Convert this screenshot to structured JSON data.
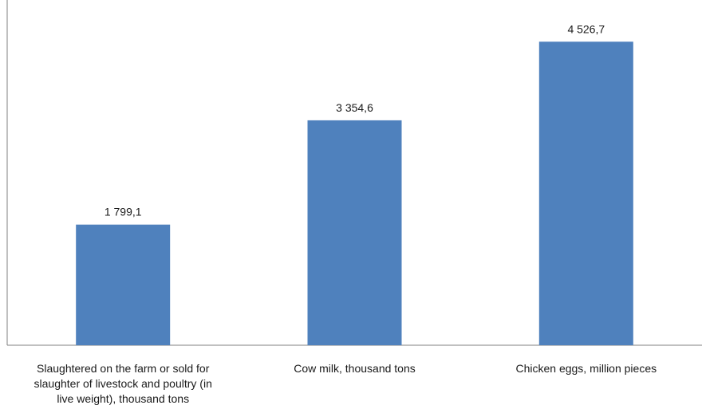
{
  "chart_data": {
    "type": "bar",
    "categories": [
      "Slaughtered on the farm or sold for slaughter of livestock and poultry (in live weight), thousand tons",
      "Cow milk, thousand tons",
      "Chicken eggs, million pieces"
    ],
    "category_label_lines": [
      [
        "Slaughtered on the farm or sold for",
        "slaughter of livestock and poultry (in",
        "live weight), thousand tons"
      ],
      [
        "Cow milk, thousand tons"
      ],
      [
        "Chicken eggs, million pieces"
      ]
    ],
    "values": [
      1799.1,
      3354.6,
      4526.7
    ],
    "value_labels": [
      "1 799,1",
      "3 354,6",
      "4 526,7"
    ],
    "title": "",
    "xlabel": "",
    "ylabel": "",
    "ylim": [
      0,
      5000
    ],
    "grid": false,
    "legend": "none",
    "bar_color": "#4F81BD",
    "axis_color": "#808080"
  }
}
